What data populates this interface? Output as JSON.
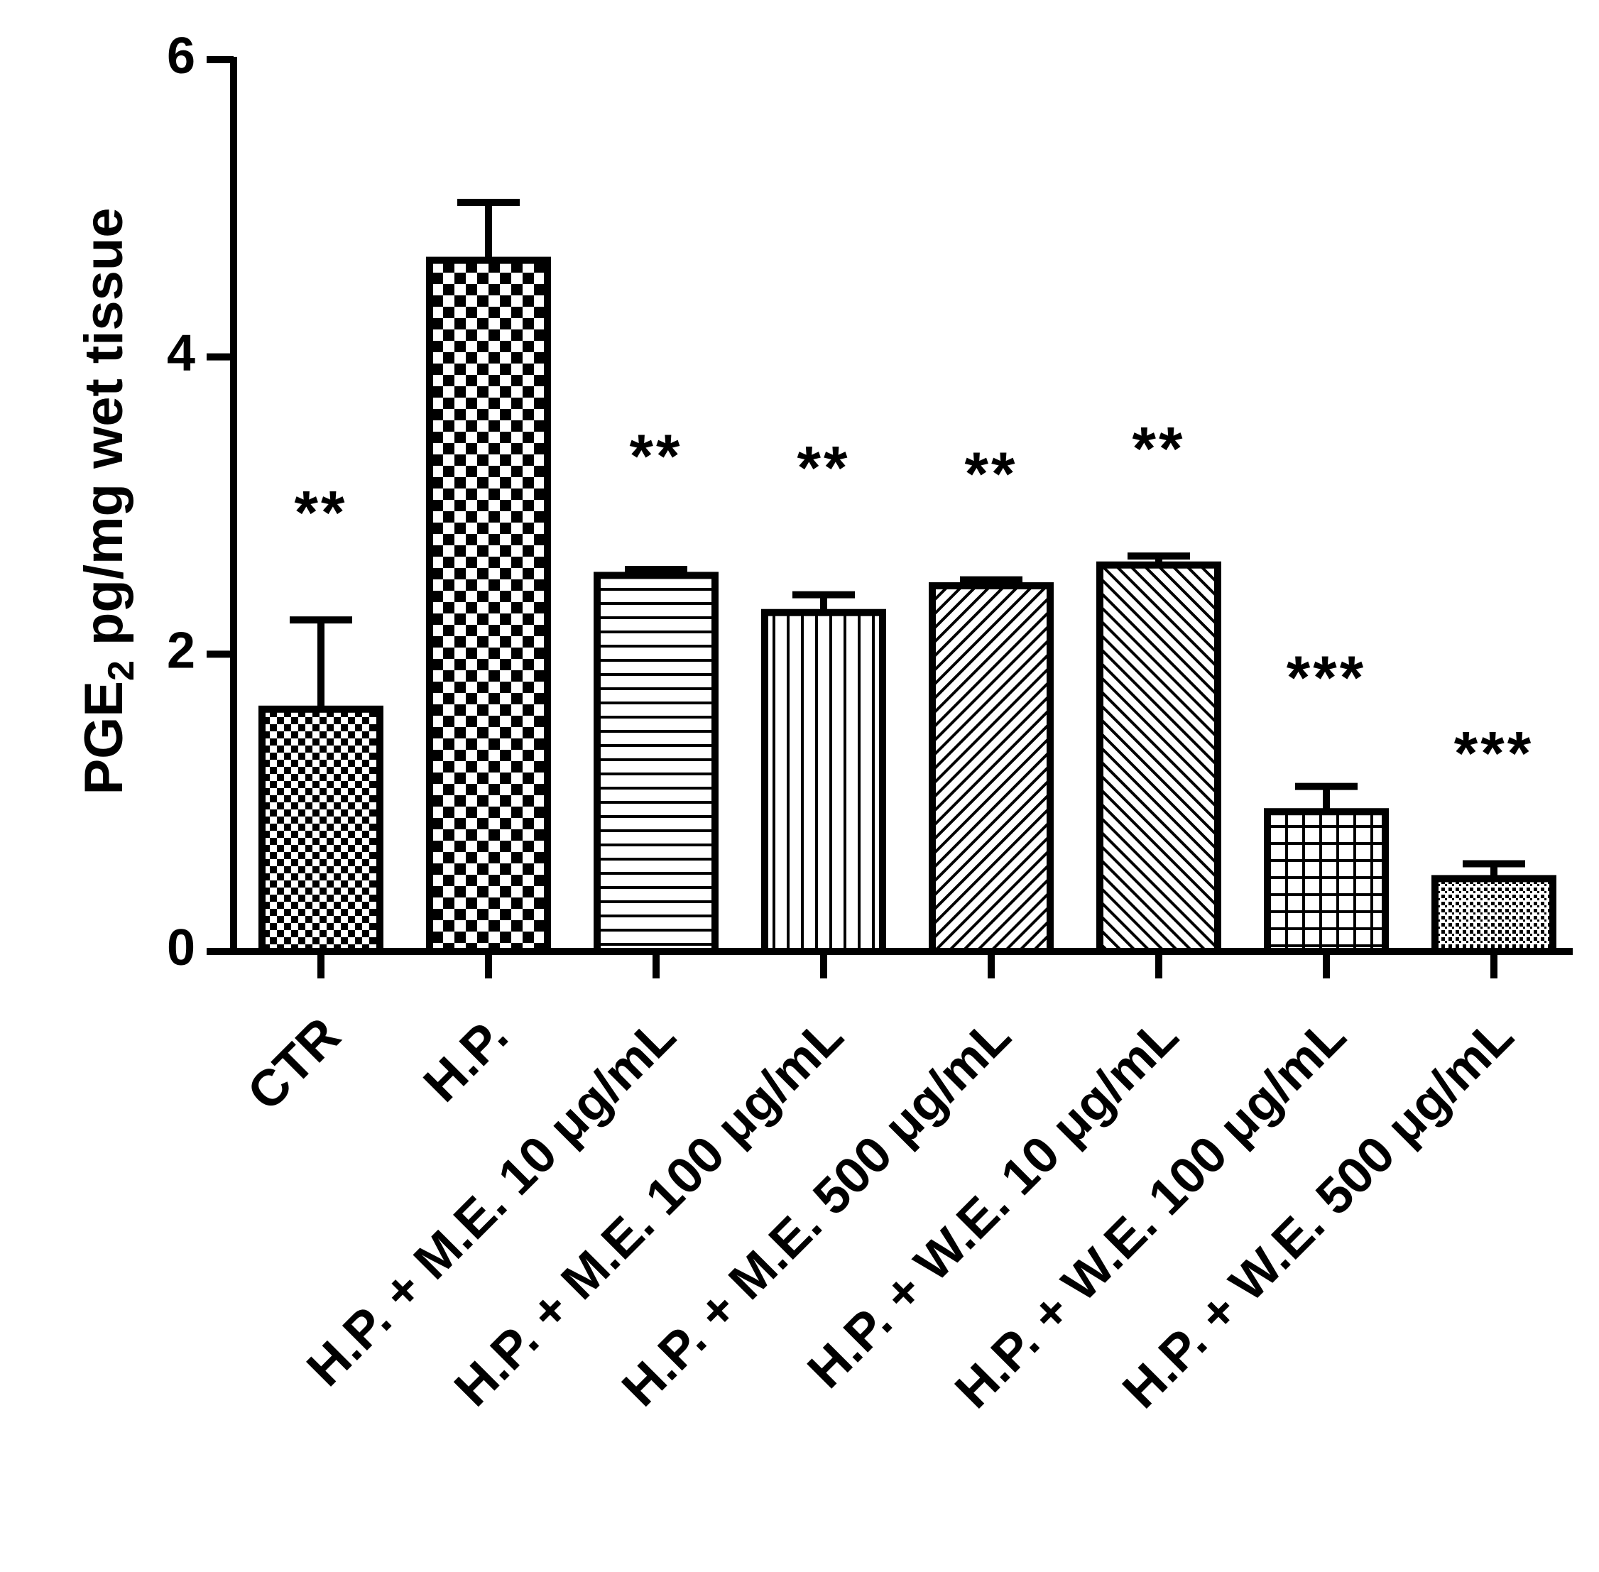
{
  "chart_data": {
    "type": "bar",
    "ylabel_main": "PGE",
    "ylabel_sub": "2",
    "ylabel_rest": " pg/mg wet tissue",
    "ylim": [
      0,
      6
    ],
    "yticks": [
      "0",
      "2",
      "4",
      "6"
    ],
    "ytick_values": [
      0,
      2,
      4,
      6
    ],
    "categories": [
      "CTR",
      "H.P.",
      "H.P. + M.E. 10 μg/mL",
      "H.P. + M.E. 100 μg/mL",
      "H.P. + M.E. 500 μg/mL",
      "H.P. + W.E. 10 μg/mL",
      "H.P. + W.E. 100 μg/mL",
      "H.P. + W.E. 500 μg/mL"
    ],
    "values": [
      1.63,
      4.65,
      2.53,
      2.28,
      2.46,
      2.6,
      0.94,
      0.49
    ],
    "errors": [
      0.6,
      0.39,
      0.04,
      0.12,
      0.04,
      0.06,
      0.17,
      0.1
    ],
    "significance": [
      "**",
      "",
      "**",
      "**",
      "**",
      "**",
      "***",
      "***"
    ],
    "significance_levels": [
      2.92,
      null,
      3.3,
      3.22,
      3.18,
      3.35,
      1.81,
      1.3
    ],
    "patterns": [
      "check-fine",
      "check-coarse",
      "horizontal",
      "vertical",
      "diag-up",
      "diag-down",
      "grid",
      "dots"
    ],
    "bar_color": "#000000",
    "background": "#ffffff",
    "grid": false,
    "legend": "none"
  }
}
